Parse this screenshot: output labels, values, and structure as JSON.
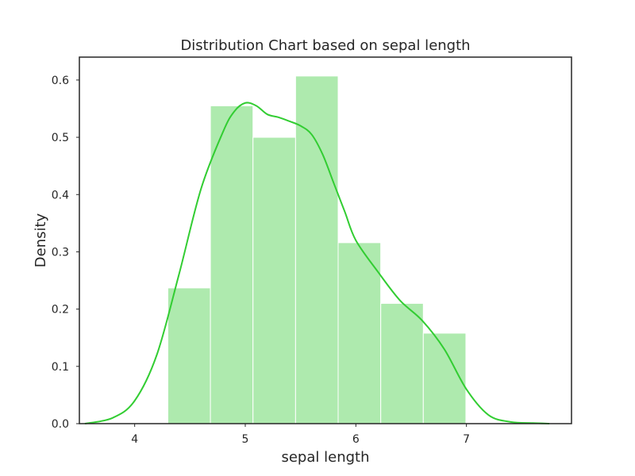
{
  "chart_data": {
    "type": "histogram",
    "title": "Distribution Chart based on sepal length",
    "xlabel": "sepal length",
    "ylabel": "Density",
    "xlim": [
      3.5,
      7.95
    ],
    "ylim": [
      0,
      0.64
    ],
    "xticks": [
      4,
      5,
      6,
      7
    ],
    "yticks": [
      0.0,
      0.1,
      0.2,
      0.3,
      0.4,
      0.5,
      0.6
    ],
    "grid": false,
    "bin_edges": [
      4.3,
      4.685,
      5.07,
      5.455,
      5.84,
      6.225,
      6.61,
      6.995
    ],
    "bin_density": [
      0.237,
      0.555,
      0.5,
      0.607,
      0.316,
      0.21,
      0.158
    ],
    "kde": {
      "x": [
        3.55,
        3.8,
        4.0,
        4.2,
        4.4,
        4.6,
        4.8,
        4.9,
        5.0,
        5.1,
        5.2,
        5.3,
        5.4,
        5.5,
        5.6,
        5.7,
        5.8,
        5.9,
        6.0,
        6.2,
        6.4,
        6.6,
        6.8,
        7.0,
        7.2,
        7.4,
        7.6,
        7.75
      ],
      "y": [
        0.0,
        0.01,
        0.04,
        0.12,
        0.26,
        0.41,
        0.51,
        0.545,
        0.56,
        0.555,
        0.54,
        0.535,
        0.528,
        0.52,
        0.505,
        0.47,
        0.42,
        0.37,
        0.32,
        0.265,
        0.215,
        0.18,
        0.13,
        0.06,
        0.015,
        0.003,
        0.001,
        0.0
      ]
    }
  },
  "colors": {
    "bars": "#aeeaae",
    "bar_edge": "#ffffff",
    "kde_line": "#32cd32",
    "axis": "#262626"
  }
}
